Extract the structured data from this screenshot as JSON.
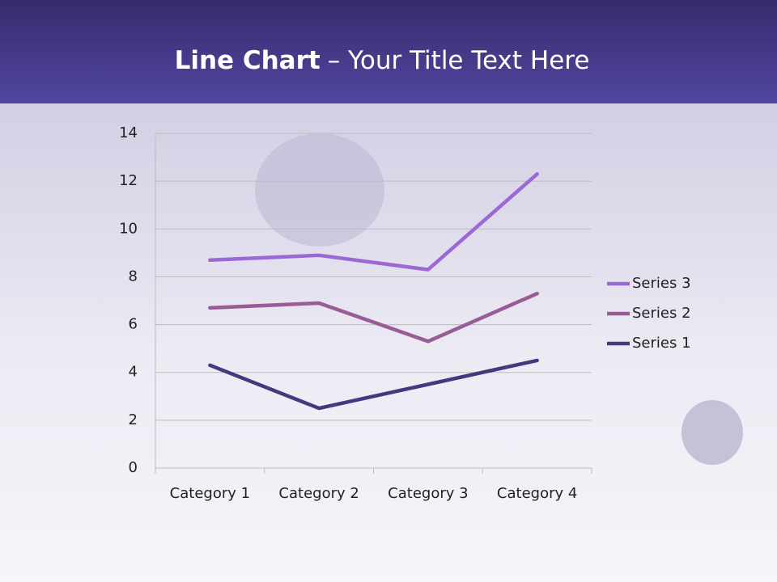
{
  "chart_data": {
    "type": "line",
    "stacked": true,
    "title_emphasis": "Line Chart",
    "title": "– Your Title Text Here",
    "categories": [
      "Category 1",
      "Category 2",
      "Category 3",
      "Category 4"
    ],
    "series": [
      {
        "name": "Series 1",
        "color": "#45387f",
        "values": [
          4.3,
          2.5,
          3.5,
          4.5
        ]
      },
      {
        "name": "Series 2",
        "color": "#995c95",
        "values": [
          2.4,
          4.4,
          1.8,
          2.8
        ]
      },
      {
        "name": "Series 3",
        "color": "#9b68d4",
        "values": [
          2,
          2,
          3,
          5
        ]
      }
    ],
    "ylim": [
      0,
      14
    ],
    "yticks": [
      0,
      2,
      4,
      6,
      8,
      10,
      12,
      14
    ],
    "grid": true,
    "legend": "right"
  }
}
